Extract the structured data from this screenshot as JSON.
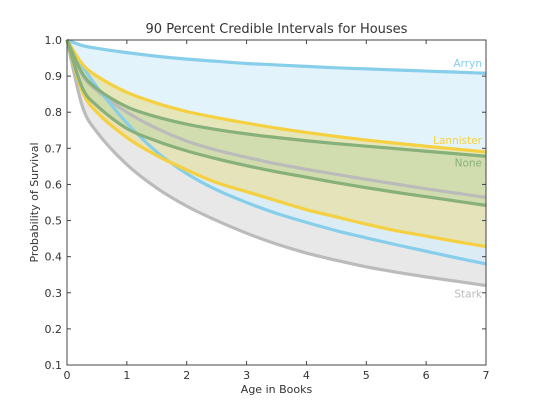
{
  "chart_data": {
    "type": "area",
    "title": "90 Percent Credible Intervals for Houses",
    "xlabel": "Age in Books",
    "ylabel": "Probability of Survival",
    "xlim": [
      0,
      7
    ],
    "ylim": [
      0.1,
      1.0
    ],
    "x_ticks": [
      "0",
      "1",
      "2",
      "3",
      "4",
      "5",
      "6",
      "7"
    ],
    "y_ticks": [
      "0.1",
      "0.2",
      "0.3",
      "0.4",
      "0.5",
      "0.6",
      "0.7",
      "0.8",
      "0.9",
      "1.0"
    ],
    "grid": false,
    "x": [
      0,
      0.25,
      0.5,
      1,
      1.5,
      2,
      2.5,
      3,
      3.5,
      4,
      4.5,
      5,
      5.5,
      6,
      6.5,
      7
    ],
    "series": [
      {
        "name": "Arryn",
        "color": "#87CEEB",
        "fill": "#D6EEFA",
        "upper": [
          1.0,
          0.985,
          0.977,
          0.965,
          0.955,
          0.947,
          0.941,
          0.935,
          0.931,
          0.927,
          0.923,
          0.92,
          0.917,
          0.914,
          0.911,
          0.908
        ],
        "lower": [
          1.0,
          0.93,
          0.87,
          0.77,
          0.69,
          0.63,
          0.585,
          0.55,
          0.52,
          0.495,
          0.472,
          0.452,
          0.433,
          0.415,
          0.397,
          0.38
        ]
      },
      {
        "name": "Lannister",
        "color": "#F5D040",
        "fill": "#E8E0A0",
        "upper": [
          1.0,
          0.935,
          0.9,
          0.855,
          0.825,
          0.802,
          0.785,
          0.77,
          0.756,
          0.744,
          0.733,
          0.723,
          0.714,
          0.706,
          0.698,
          0.69
        ],
        "lower": [
          1.0,
          0.86,
          0.8,
          0.73,
          0.68,
          0.64,
          0.605,
          0.58,
          0.555,
          0.53,
          0.51,
          0.49,
          0.472,
          0.457,
          0.442,
          0.428
        ]
      },
      {
        "name": "None",
        "color": "#88B07A",
        "fill": "#C7D9A8",
        "upper": [
          1.0,
          0.91,
          0.865,
          0.815,
          0.787,
          0.767,
          0.752,
          0.74,
          0.73,
          0.721,
          0.713,
          0.706,
          0.699,
          0.692,
          0.685,
          0.678
        ],
        "lower": [
          1.0,
          0.87,
          0.818,
          0.755,
          0.72,
          0.693,
          0.671,
          0.652,
          0.635,
          0.62,
          0.605,
          0.591,
          0.578,
          0.566,
          0.554,
          0.542
        ]
      },
      {
        "name": "Stark",
        "color": "#BBBBBB",
        "fill": "#E8E8E8",
        "upper": [
          1.0,
          0.905,
          0.86,
          0.8,
          0.755,
          0.72,
          0.695,
          0.675,
          0.657,
          0.642,
          0.628,
          0.614,
          0.601,
          0.588,
          0.576,
          0.564
        ],
        "lower": [
          1.0,
          0.82,
          0.745,
          0.655,
          0.59,
          0.54,
          0.5,
          0.465,
          0.435,
          0.41,
          0.39,
          0.372,
          0.357,
          0.344,
          0.332,
          0.32
        ]
      }
    ]
  }
}
